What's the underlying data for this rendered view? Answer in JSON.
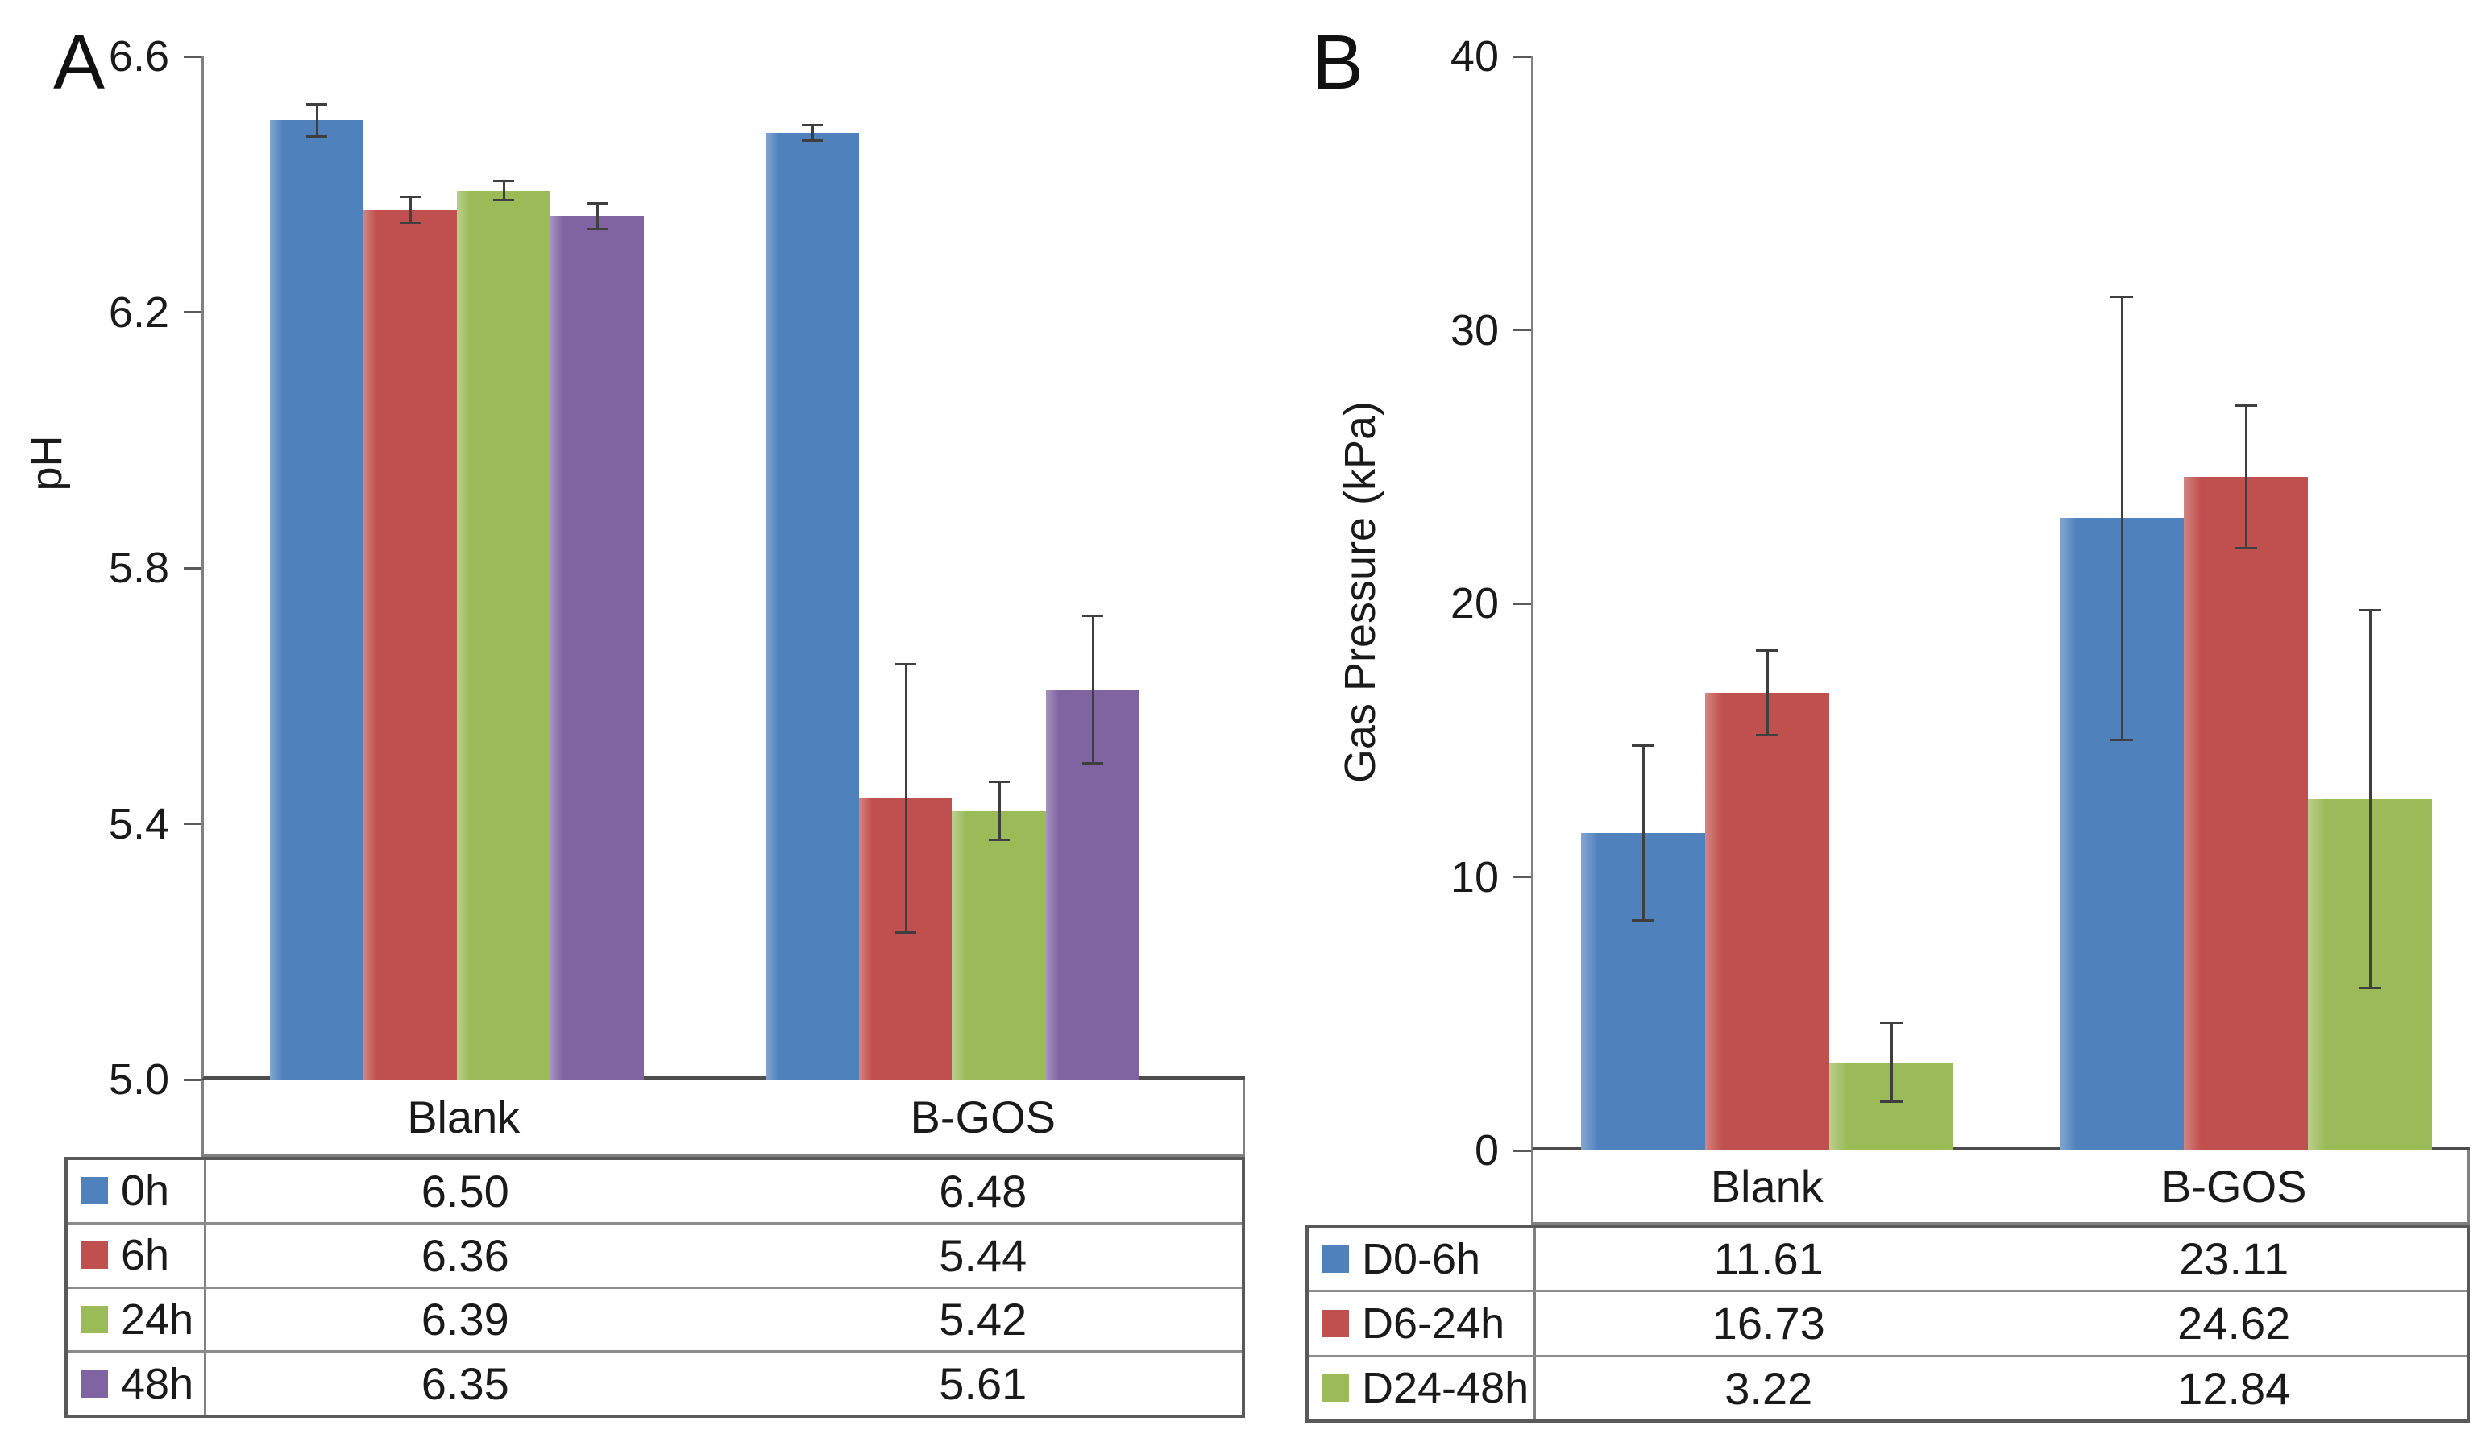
{
  "chart_data": [
    {
      "type": "bar",
      "panel_letter": "A",
      "ylabel": "pH",
      "ylim": [
        5.0,
        6.6
      ],
      "ytick_values": [
        6.6,
        6.2,
        5.8,
        5.4,
        5.0
      ],
      "ytick_labels": [
        "6.6",
        "6.2",
        "5.8",
        "5.4",
        "5.0"
      ],
      "categories": [
        "Blank",
        "B-GOS"
      ],
      "grid": false,
      "legend_position": "table-left",
      "series": [
        {
          "name": "0h",
          "color": "#4F81BD",
          "values": [
            6.5,
            6.48
          ],
          "value_labels": [
            "6.50",
            "6.48"
          ],
          "errors": [
            0.025,
            0.012
          ]
        },
        {
          "name": "6h",
          "color": "#C0504D",
          "values": [
            6.36,
            5.44
          ],
          "value_labels": [
            "6.36",
            "5.44"
          ],
          "errors": [
            0.02,
            0.21
          ]
        },
        {
          "name": "24h",
          "color": "#9BBB59",
          "values": [
            6.39,
            5.42
          ],
          "value_labels": [
            "6.39",
            "5.42"
          ],
          "errors": [
            0.015,
            0.045
          ]
        },
        {
          "name": "48h",
          "color": "#8064A2",
          "values": [
            6.35,
            5.61
          ],
          "value_labels": [
            "6.35",
            "5.61"
          ],
          "errors": [
            0.02,
            0.115
          ]
        }
      ]
    },
    {
      "type": "bar",
      "panel_letter": "B",
      "ylabel": "Gas Pressure (kPa)",
      "ylim": [
        0,
        40
      ],
      "ytick_values": [
        40,
        30,
        20,
        10,
        0
      ],
      "ytick_labels": [
        "40",
        "30",
        "20",
        "10",
        "0"
      ],
      "categories": [
        "Blank",
        "B-GOS"
      ],
      "grid": false,
      "legend_position": "table-left",
      "series": [
        {
          "name": "D0-6h",
          "color": "#4F81BD",
          "values": [
            11.61,
            23.11
          ],
          "value_labels": [
            "11.61",
            "23.11"
          ],
          "errors": [
            3.2,
            8.1
          ]
        },
        {
          "name": "D6-24h",
          "color": "#C0504D",
          "values": [
            16.73,
            24.62
          ],
          "value_labels": [
            "16.73",
            "24.62"
          ],
          "errors": [
            1.55,
            2.6
          ]
        },
        {
          "name": "D24-48h",
          "color": "#9BBB59",
          "values": [
            3.22,
            12.84
          ],
          "value_labels": [
            "3.22",
            "12.84"
          ],
          "errors": [
            1.45,
            6.9
          ]
        }
      ]
    }
  ],
  "colors": {
    "axis": "#808080",
    "x_axis_line": "#4d4d4d",
    "table_border_outer": "#595959",
    "table_border_inner": "#8c8c8c",
    "error_bar": "#3f3f3f",
    "text": "#1a1a1a",
    "background": "#ffffff",
    "series_blue": "#4F81BD",
    "series_red": "#C0504D",
    "series_green": "#9BBB59",
    "series_purple": "#8064A2"
  }
}
